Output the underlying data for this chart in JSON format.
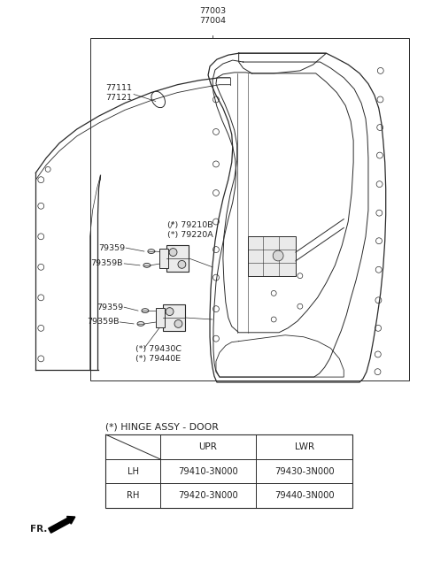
{
  "bg_color": "#ffffff",
  "fig_width": 4.8,
  "fig_height": 6.34,
  "title": "(*) HINGE ASSY - DOOR",
  "table_header": [
    "",
    "UPR",
    "LWR"
  ],
  "table_rows": [
    [
      "LH",
      "79410-3N000",
      "79430-3N000"
    ],
    [
      "RH",
      "79420-3N000",
      "79440-3N000"
    ]
  ],
  "line_color": "#2a2a2a",
  "fr_text": "FR.",
  "label_77003_77004": "77003\n77004",
  "label_77111_77121": "77111\n77121",
  "label_79210B_79220A": "(*) 79210B\n(*) 79220A",
  "label_79359_1": "79359",
  "label_79359B_1": "79359B",
  "label_79359_2": "79359",
  "label_79359B_2": "79359B",
  "label_79430C_79440E": "(*) 79430C\n(*) 79440E"
}
